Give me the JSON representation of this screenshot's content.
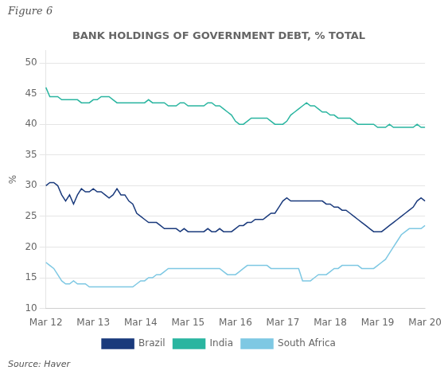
{
  "chart_data": {
    "type": "line",
    "title": "BANK HOLDINGS OF GOVERNMENT DEBT, % TOTAL",
    "annotations": [
      "Figure 6",
      "Source: Haver"
    ],
    "ylabel": "%",
    "categories": [
      "Mar 12",
      null,
      null,
      null,
      null,
      null,
      null,
      null,
      null,
      null,
      null,
      null,
      "Mar 13",
      null,
      null,
      null,
      null,
      null,
      null,
      null,
      null,
      null,
      null,
      null,
      "Mar 14",
      null,
      null,
      null,
      null,
      null,
      null,
      null,
      null,
      null,
      null,
      null,
      "Mar 15",
      null,
      null,
      null,
      null,
      null,
      null,
      null,
      null,
      null,
      null,
      null,
      "Mar 16",
      null,
      null,
      null,
      null,
      null,
      null,
      null,
      null,
      null,
      null,
      null,
      "Mar 17",
      null,
      null,
      null,
      null,
      null,
      null,
      null,
      null,
      null,
      null,
      null,
      "Mar 18",
      null,
      null,
      null,
      null,
      null,
      null,
      null,
      null,
      null,
      null,
      null,
      "Mar 19",
      null,
      null,
      null,
      null,
      null,
      null,
      null,
      null,
      null,
      null,
      null,
      "Mar 20"
    ],
    "ylim": [
      10,
      52
    ],
    "yticks": [
      10,
      15,
      20,
      25,
      30,
      35,
      40,
      45,
      50
    ],
    "grid": true,
    "legend": "bottom",
    "series": [
      {
        "name": "Brazil",
        "color": "#1a3a7c",
        "values": [
          30.0,
          30.5,
          30.5,
          30.0,
          28.5,
          27.5,
          28.5,
          27.0,
          28.5,
          29.5,
          29.0,
          29.0,
          29.5,
          29.0,
          29.0,
          28.5,
          28.0,
          28.5,
          29.5,
          28.5,
          28.5,
          27.5,
          27.0,
          25.5,
          25.0,
          24.5,
          24.0,
          24.0,
          24.0,
          23.5,
          23.0,
          23.0,
          23.0,
          23.0,
          22.5,
          23.0,
          22.5,
          22.5,
          22.5,
          22.5,
          22.5,
          23.0,
          22.5,
          22.5,
          23.0,
          22.5,
          22.5,
          22.5,
          23.0,
          23.5,
          23.5,
          24.0,
          24.0,
          24.5,
          24.5,
          24.5,
          25.0,
          25.5,
          25.5,
          26.5,
          27.5,
          28.0,
          27.5,
          27.5,
          27.5,
          27.5,
          27.5,
          27.5,
          27.5,
          27.5,
          27.5,
          27.0,
          27.0,
          26.5,
          26.5,
          26.0,
          26.0,
          25.5,
          25.0,
          24.5,
          24.0,
          23.5,
          23.0,
          22.5,
          22.5,
          22.5,
          23.0,
          23.5,
          24.0,
          24.5,
          25.0,
          25.5,
          26.0,
          26.5,
          27.5,
          28.0,
          27.5
        ]
      },
      {
        "name": "India",
        "color": "#2ab5a0",
        "values": [
          46.0,
          44.5,
          44.5,
          44.5,
          44.0,
          44.0,
          44.0,
          44.0,
          44.0,
          43.5,
          43.5,
          43.5,
          44.0,
          44.0,
          44.5,
          44.5,
          44.5,
          44.0,
          43.5,
          43.5,
          43.5,
          43.5,
          43.5,
          43.5,
          43.5,
          43.5,
          44.0,
          43.5,
          43.5,
          43.5,
          43.5,
          43.0,
          43.0,
          43.0,
          43.5,
          43.5,
          43.0,
          43.0,
          43.0,
          43.0,
          43.0,
          43.5,
          43.5,
          43.0,
          43.0,
          42.5,
          42.0,
          41.5,
          40.5,
          40.0,
          40.0,
          40.5,
          41.0,
          41.0,
          41.0,
          41.0,
          41.0,
          40.5,
          40.0,
          40.0,
          40.0,
          40.5,
          41.5,
          42.0,
          42.5,
          43.0,
          43.5,
          43.0,
          43.0,
          42.5,
          42.0,
          42.0,
          41.5,
          41.5,
          41.0,
          41.0,
          41.0,
          41.0,
          40.5,
          40.0,
          40.0,
          40.0,
          40.0,
          40.0,
          39.5,
          39.5,
          39.5,
          40.0,
          39.5,
          39.5,
          39.5,
          39.5,
          39.5,
          39.5,
          40.0,
          39.5,
          39.5
        ]
      },
      {
        "name": "South Africa",
        "color": "#7ec8e3",
        "values": [
          17.5,
          17.0,
          16.5,
          15.5,
          14.5,
          14.0,
          14.0,
          14.5,
          14.0,
          14.0,
          14.0,
          13.5,
          13.5,
          13.5,
          13.5,
          13.5,
          13.5,
          13.5,
          13.5,
          13.5,
          13.5,
          13.5,
          13.5,
          14.0,
          14.5,
          14.5,
          15.0,
          15.0,
          15.5,
          15.5,
          16.0,
          16.5,
          16.5,
          16.5,
          16.5,
          16.5,
          16.5,
          16.5,
          16.5,
          16.5,
          16.5,
          16.5,
          16.5,
          16.5,
          16.5,
          16.0,
          15.5,
          15.5,
          15.5,
          16.0,
          16.5,
          17.0,
          17.0,
          17.0,
          17.0,
          17.0,
          17.0,
          16.5,
          16.5,
          16.5,
          16.5,
          16.5,
          16.5,
          16.5,
          16.5,
          14.5,
          14.5,
          14.5,
          15.0,
          15.5,
          15.5,
          15.5,
          16.0,
          16.5,
          16.5,
          17.0,
          17.0,
          17.0,
          17.0,
          17.0,
          16.5,
          16.5,
          16.5,
          16.5,
          17.0,
          17.5,
          18.0,
          19.0,
          20.0,
          21.0,
          22.0,
          22.5,
          23.0,
          23.0,
          23.0,
          23.0,
          23.5
        ]
      }
    ]
  }
}
